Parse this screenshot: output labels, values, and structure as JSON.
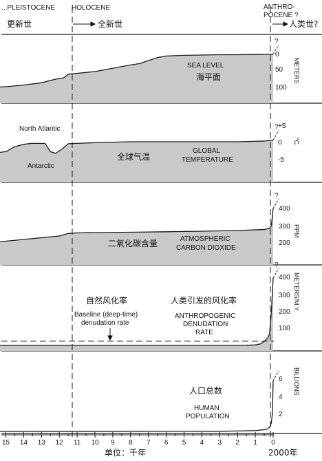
{
  "epochs": {
    "pleistocene_en": "...PLEISTOCENE",
    "pleistocene_zh": "更新世",
    "holocene_en": "HOLOCENE",
    "holocene_zh": "全新世",
    "anthropocene_en_1": "ANTHRO-",
    "anthropocene_en_2": "POCENE ?",
    "anthropocene_zh": "人类世?"
  },
  "colors": {
    "fill": "#c9c9c9",
    "line": "#1a1a1a"
  },
  "chart_data": [
    {
      "type": "area",
      "name_en": "SEA LEVEL",
      "name_zh": "海平面",
      "unit": "METERS",
      "y_ticks": [
        "0",
        "50",
        "100"
      ],
      "x": [
        15.8,
        15,
        14,
        13,
        12.2,
        11.8,
        11.6,
        11.5,
        10,
        8,
        7.5,
        6.5,
        6,
        5,
        4,
        3,
        2,
        1,
        0.3,
        0
      ],
      "y": [
        100,
        98,
        93,
        86,
        75,
        72,
        65,
        60,
        52,
        32,
        28,
        10,
        5,
        3,
        2,
        1,
        1,
        0.5,
        0,
        0
      ]
    },
    {
      "type": "line",
      "name_en_1": "GLOBAL",
      "name_en_2": "TEMPERATURE",
      "name_zh": "全球气温",
      "unit": "°C",
      "y_ticks": [
        "+5",
        "0",
        "-5"
      ],
      "annotations": [
        "North Atlantic",
        "Antarctic"
      ],
      "x": [
        15.8,
        15,
        14.5,
        14,
        13.6,
        13.2,
        12.8,
        12.5,
        12.2,
        11.8,
        11.5,
        11,
        10,
        8,
        6,
        4,
        2,
        0.5,
        0
      ],
      "y": [
        -3.5,
        -3,
        -1.5,
        -0.8,
        -0.5,
        -0.5,
        -0.5,
        -3,
        -3.5,
        -2,
        -0.6,
        -0.5,
        -0.3,
        0,
        0,
        0,
        0,
        0.2,
        0.5
      ]
    },
    {
      "type": "area",
      "name_en_1": "ATMOSPHERIC",
      "name_en_2": "CARBON DIOXIDE",
      "name_zh": "二氧化碳含量",
      "unit": "PPM",
      "y_ticks": [
        "400",
        "300",
        "200"
      ],
      "x": [
        15.8,
        15,
        14,
        13,
        12,
        11.5,
        11,
        10,
        8,
        6,
        4,
        2,
        0.5,
        0.2,
        0.1,
        0
      ],
      "y": [
        200,
        210,
        220,
        230,
        240,
        255,
        258,
        260,
        262,
        265,
        268,
        272,
        278,
        285,
        300,
        400
      ]
    },
    {
      "type": "area",
      "name_en_1": "ANTHROPOGENIC",
      "name_en_2": "DENUDATION",
      "name_en_3": "RATE",
      "name_zh": "人类引发的风化率",
      "baseline_zh": "自然风化率",
      "baseline_en_1": "Baseline (deep-time)",
      "baseline_en_2": "denudation rate",
      "unit": "METERS/M.Y.",
      "y_ticks": [
        "400",
        "300",
        "200",
        "100"
      ],
      "baseline": 25,
      "x": [
        15.8,
        2,
        1.5,
        1,
        0.7,
        0.5,
        0.3,
        0.2,
        0.1,
        0.05,
        0
      ],
      "y": [
        0,
        0,
        1,
        3,
        10,
        25,
        45,
        70,
        200,
        300,
        400
      ]
    },
    {
      "type": "line",
      "name_zh": "人口总数",
      "name_en_1": "HUMAN",
      "name_en_2": "POPULATION",
      "unit": "BILLIONS",
      "y_ticks": [
        "6",
        "4",
        "2"
      ],
      "x": [
        15.8,
        5,
        3,
        2,
        1,
        0.5,
        0.3,
        0.2,
        0.1,
        0.05,
        0.02,
        0
      ],
      "y": [
        0,
        0.01,
        0.02,
        0.05,
        0.1,
        0.2,
        0.3,
        0.5,
        1,
        2,
        4,
        6
      ]
    }
  ],
  "x_axis": {
    "ticks": [
      "15",
      "14",
      "13",
      "12",
      "11",
      "10",
      "9",
      "8",
      "7",
      "6",
      "5",
      "4",
      "3",
      "2",
      "1",
      "0"
    ],
    "label_zh": "单位：千年",
    "end_label": "2000年"
  }
}
